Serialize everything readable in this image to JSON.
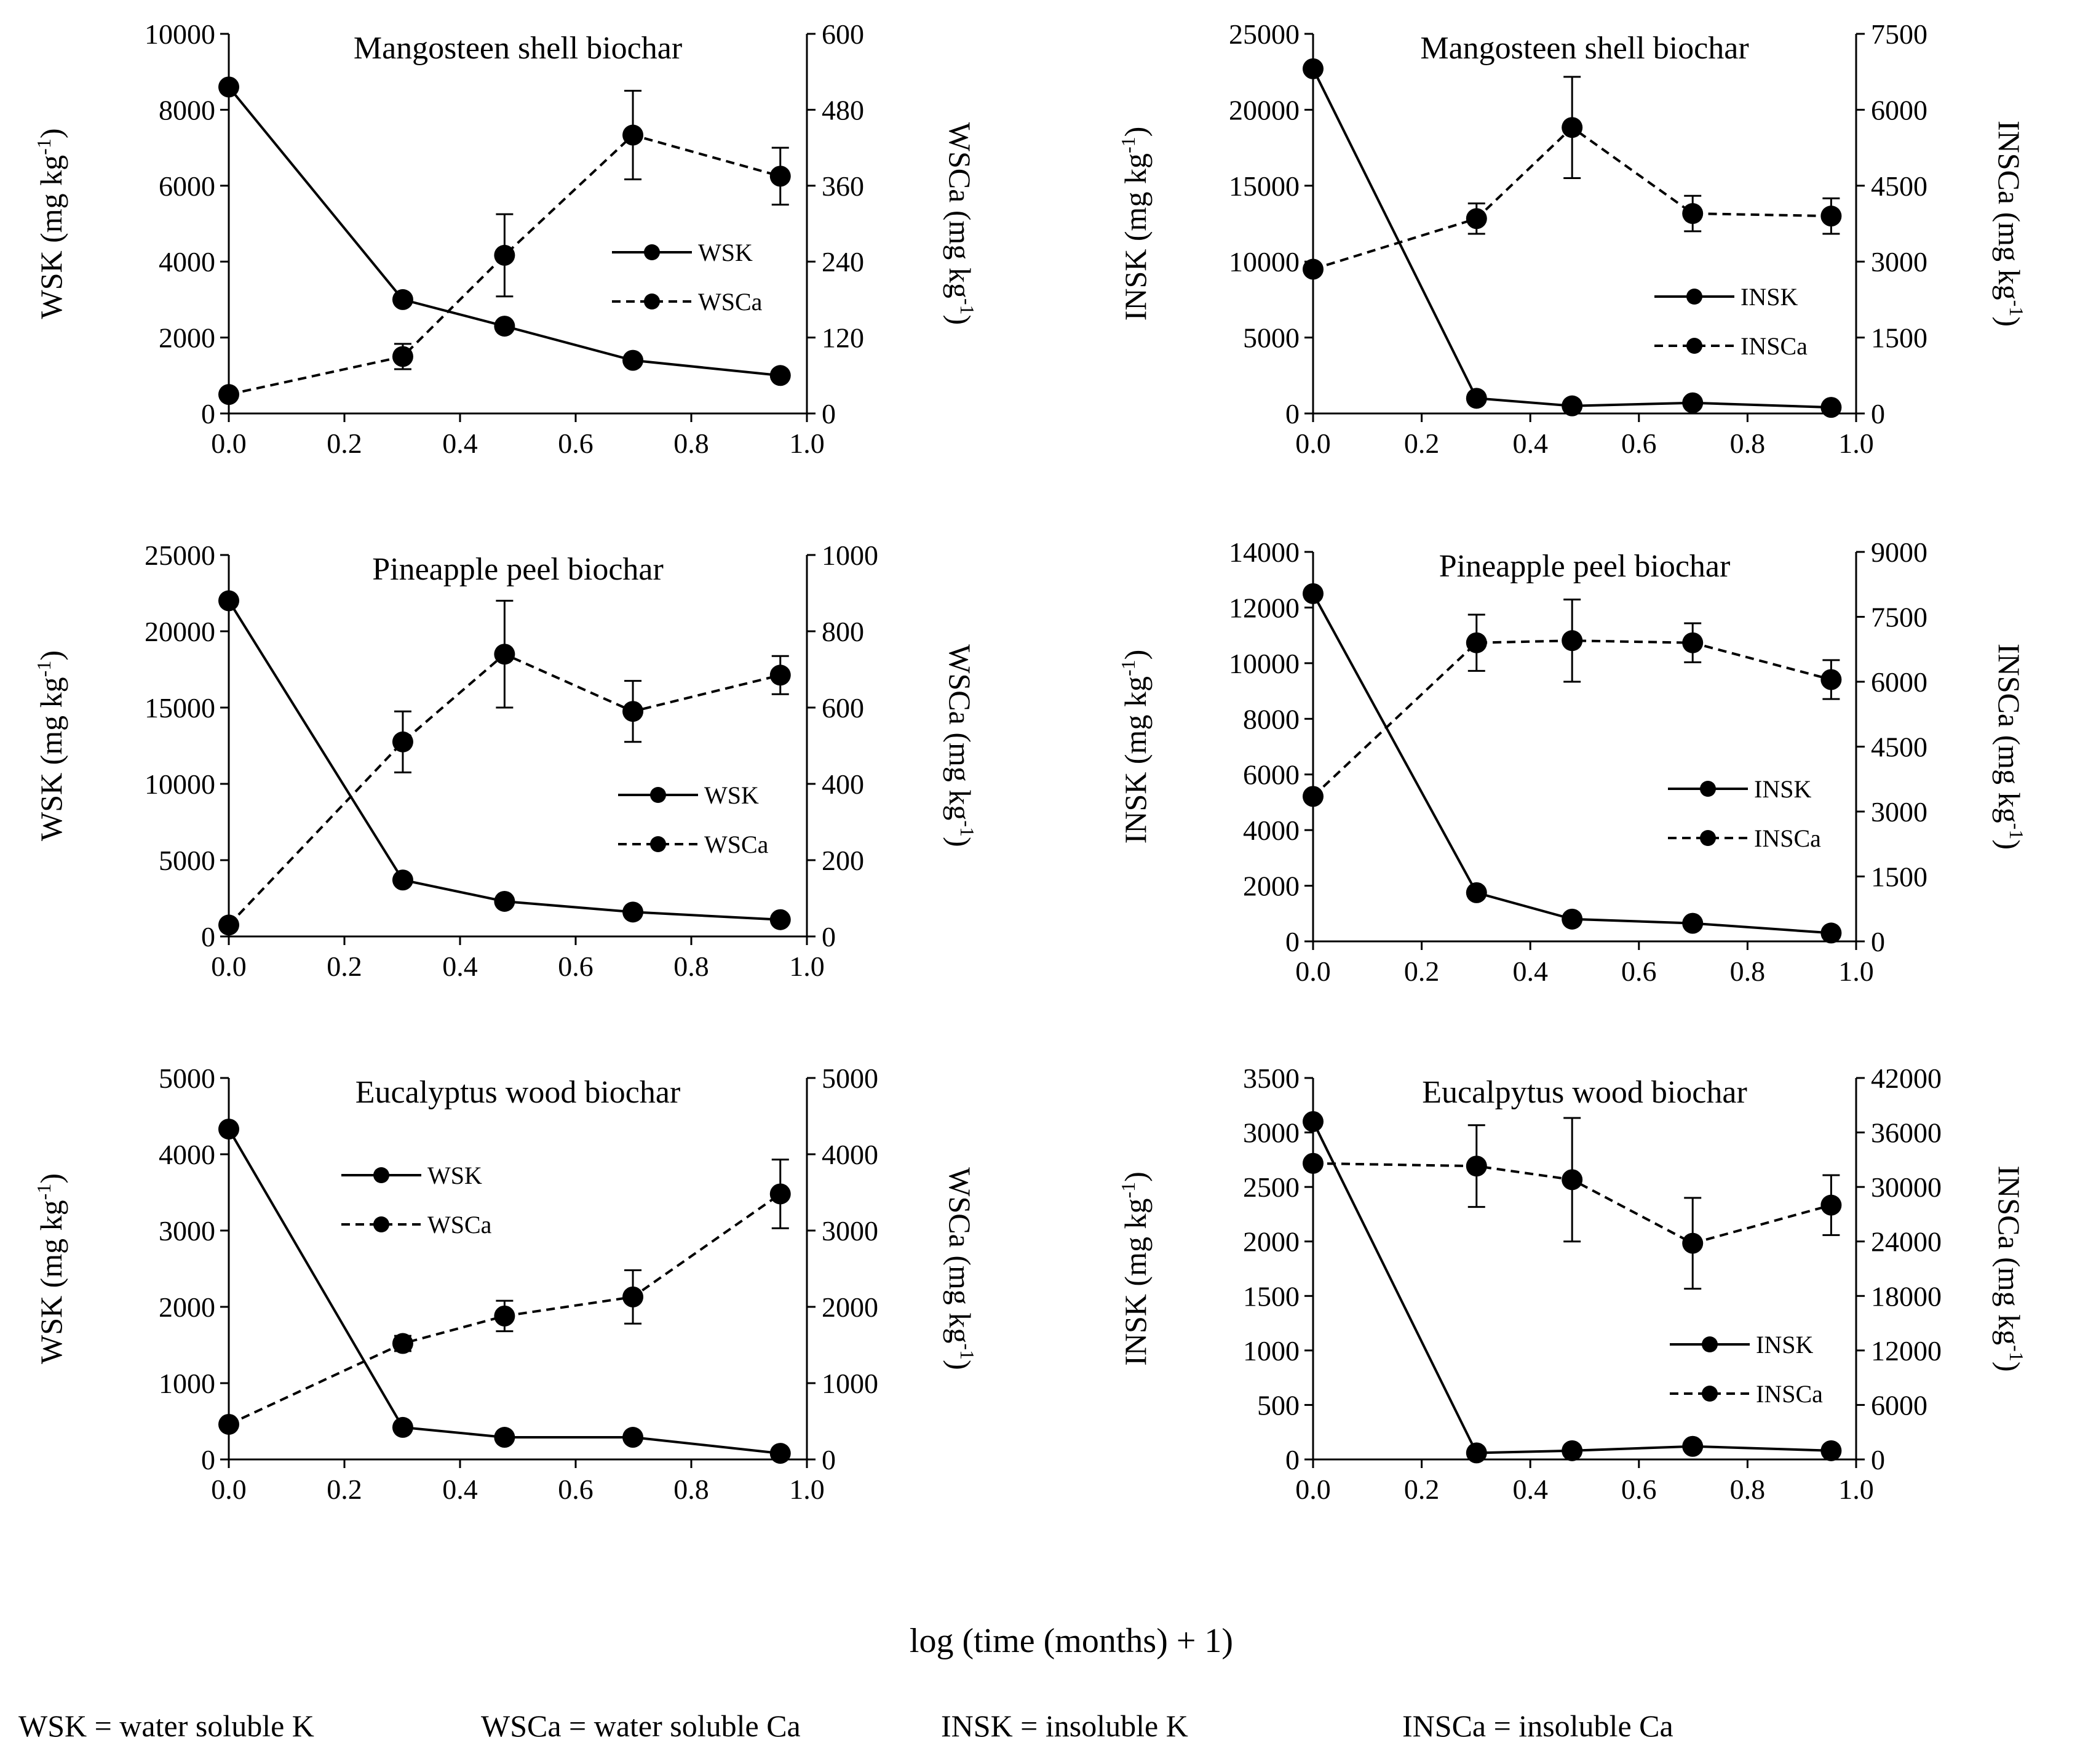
{
  "figure": {
    "common_xlabel": "log (time (months) + 1)",
    "footnotes": [
      "WSK = water soluble K",
      "WSCa = water soluble Ca",
      "INSK = insoluble K",
      "INSCa = insoluble Ca"
    ]
  },
  "chart_data": [
    {
      "type": "line",
      "title": "Mangosteen shell biochar",
      "xlabel": "",
      "xlim": [
        0,
        1
      ],
      "xticks": [
        "0.0",
        "0.2",
        "0.4",
        "0.6",
        "0.8",
        "1.0"
      ],
      "ylabel_left": "WSK (mg kg",
      "ylabel_right": "WSCa (mg kg",
      "ylabel_unit_sup": "-1",
      "ylim_left": [
        0,
        10000
      ],
      "yticks_left": [
        "0",
        "2000",
        "4000",
        "6000",
        "8000",
        "10000"
      ],
      "ylim_right": [
        0,
        600
      ],
      "yticks_right": [
        "0",
        "120",
        "240",
        "360",
        "480",
        "600"
      ],
      "legend_position": "middle-right",
      "series": [
        {
          "name": "WSK",
          "axis": "left",
          "style": "solid",
          "x": [
            0,
            0.301,
            0.477,
            0.699,
            0.954
          ],
          "values": [
            8600,
            3000,
            2300,
            1400,
            1000
          ],
          "errors": [
            0,
            0,
            0,
            0,
            0
          ]
        },
        {
          "name": "WSCa",
          "axis": "right",
          "style": "dashed",
          "x": [
            0,
            0.301,
            0.477,
            0.699,
            0.954
          ],
          "values": [
            30,
            90,
            250,
            440,
            375
          ],
          "errors": [
            0,
            20,
            65,
            70,
            45
          ]
        }
      ]
    },
    {
      "type": "line",
      "title": "Mangosteen shell biochar",
      "xlabel": "",
      "xlim": [
        0,
        1
      ],
      "xticks": [
        "0.0",
        "0.2",
        "0.4",
        "0.6",
        "0.8",
        "1.0"
      ],
      "ylabel_left": "INSK (mg kg",
      "ylabel_right": "INSCa (mg kg",
      "ylabel_unit_sup": "-1",
      "ylim_left": [
        0,
        25000
      ],
      "yticks_left": [
        "0",
        "5000",
        "10000",
        "15000",
        "20000",
        "25000"
      ],
      "ylim_right": [
        0,
        7500
      ],
      "yticks_right": [
        "0",
        "1500",
        "3000",
        "4500",
        "6000",
        "7500"
      ],
      "legend_position": "lower-right",
      "series": [
        {
          "name": "INSK",
          "axis": "left",
          "style": "solid",
          "x": [
            0,
            0.301,
            0.477,
            0.699,
            0.954
          ],
          "values": [
            22700,
            1000,
            500,
            700,
            400
          ],
          "errors": [
            0,
            0,
            0,
            0,
            0
          ]
        },
        {
          "name": "INSCa",
          "axis": "right",
          "style": "dashed",
          "x": [
            0,
            0.301,
            0.477,
            0.699,
            0.954
          ],
          "values": [
            2850,
            3850,
            5650,
            3950,
            3900
          ],
          "errors": [
            0,
            300,
            1000,
            350,
            350
          ]
        }
      ]
    },
    {
      "type": "line",
      "title": "Pineapple peel biochar",
      "xlabel": "",
      "xlim": [
        0,
        1
      ],
      "xticks": [
        "0.0",
        "0.2",
        "0.4",
        "0.6",
        "0.8",
        "1.0"
      ],
      "ylabel_left": "WSK (mg kg",
      "ylabel_right": "WSCa (mg kg",
      "ylabel_unit_sup": "-1",
      "ylim_left": [
        0,
        25000
      ],
      "yticks_left": [
        "0",
        "5000",
        "10000",
        "15000",
        "20000",
        "25000"
      ],
      "ylim_right": [
        0,
        1000
      ],
      "yticks_right": [
        "0",
        "200",
        "400",
        "600",
        "800",
        "1000"
      ],
      "legend_position": "middle-right",
      "series": [
        {
          "name": "WSK",
          "axis": "left",
          "style": "solid",
          "x": [
            0,
            0.301,
            0.477,
            0.699,
            0.954
          ],
          "values": [
            22000,
            3700,
            2300,
            1600,
            1100
          ],
          "errors": [
            0,
            0,
            0,
            0,
            0
          ]
        },
        {
          "name": "WSCa",
          "axis": "right",
          "style": "dashed",
          "x": [
            0,
            0.301,
            0.477,
            0.699,
            0.954
          ],
          "values": [
            30,
            510,
            740,
            590,
            685
          ],
          "errors": [
            0,
            80,
            140,
            80,
            50
          ]
        }
      ]
    },
    {
      "type": "line",
      "title": "Pineapple peel biochar",
      "xlabel": "",
      "xlim": [
        0,
        1
      ],
      "xticks": [
        "0.0",
        "0.2",
        "0.4",
        "0.6",
        "0.8",
        "1.0"
      ],
      "ylabel_left": "INSK (mg kg",
      "ylabel_right": "INSCa (mg kg",
      "ylabel_unit_sup": "-1",
      "ylim_left": [
        0,
        14000
      ],
      "yticks_left": [
        "0",
        "2000",
        "4000",
        "6000",
        "8000",
        "10000",
        "12000",
        "14000"
      ],
      "ylim_right": [
        0,
        9000
      ],
      "yticks_right": [
        "0",
        "1500",
        "3000",
        "4500",
        "6000",
        "7500",
        "9000"
      ],
      "legend_position": "middle-right",
      "series": [
        {
          "name": "INSK",
          "axis": "left",
          "style": "solid",
          "x": [
            0,
            0.301,
            0.477,
            0.699,
            0.954
          ],
          "values": [
            12500,
            1750,
            800,
            650,
            300
          ],
          "errors": [
            0,
            0,
            0,
            0,
            0
          ]
        },
        {
          "name": "INSCa",
          "axis": "right",
          "style": "dashed",
          "x": [
            0,
            0.301,
            0.477,
            0.699,
            0.954
          ],
          "values": [
            3350,
            6900,
            6950,
            6900,
            6050
          ],
          "errors": [
            0,
            650,
            950,
            450,
            450
          ]
        }
      ]
    },
    {
      "type": "line",
      "title": "Eucalyptus wood biochar",
      "xlabel": "",
      "xlim": [
        0,
        1
      ],
      "xticks": [
        "0.0",
        "0.2",
        "0.4",
        "0.6",
        "0.8",
        "1.0"
      ],
      "ylabel_left": "WSK (mg kg",
      "ylabel_right": "WSCa (mg kg",
      "ylabel_unit_sup": "-1",
      "ylim_left": [
        0,
        5000
      ],
      "yticks_left": [
        "0",
        "1000",
        "2000",
        "3000",
        "4000",
        "5000"
      ],
      "ylim_right": [
        0,
        5000
      ],
      "yticks_right": [
        "0",
        "1000",
        "2000",
        "3000",
        "4000",
        "5000"
      ],
      "legend_position": "upper-middle",
      "series": [
        {
          "name": "WSK",
          "axis": "left",
          "style": "solid",
          "x": [
            0,
            0.301,
            0.477,
            0.699,
            0.954
          ],
          "values": [
            4330,
            420,
            290,
            290,
            80
          ],
          "errors": [
            0,
            0,
            0,
            0,
            0
          ]
        },
        {
          "name": "WSCa",
          "axis": "right",
          "style": "dashed",
          "x": [
            0,
            0.301,
            0.477,
            0.699,
            0.954
          ],
          "values": [
            460,
            1520,
            1880,
            2130,
            3480
          ],
          "errors": [
            0,
            100,
            200,
            350,
            450
          ]
        }
      ]
    },
    {
      "type": "line",
      "title": "Eucalpytus wood biochar",
      "xlabel": "",
      "xlim": [
        0,
        1
      ],
      "xticks": [
        "0.0",
        "0.2",
        "0.4",
        "0.6",
        "0.8",
        "1.0"
      ],
      "ylabel_left": "INSK (mg kg",
      "ylabel_right": "INSCa (mg kg",
      "ylabel_unit_sup": "-1",
      "ylim_left": [
        0,
        3500
      ],
      "yticks_left": [
        "0",
        "500",
        "1000",
        "1500",
        "2000",
        "2500",
        "3000",
        "3500"
      ],
      "ylim_right": [
        0,
        42000
      ],
      "yticks_right": [
        "0",
        "6000",
        "12000",
        "18000",
        "24000",
        "30000",
        "36000",
        "42000"
      ],
      "legend_position": "lower-right",
      "series": [
        {
          "name": "INSK",
          "axis": "left",
          "style": "solid",
          "x": [
            0,
            0.301,
            0.477,
            0.699,
            0.954
          ],
          "values": [
            3100,
            60,
            80,
            120,
            80
          ],
          "errors": [
            0,
            0,
            0,
            0,
            0
          ]
        },
        {
          "name": "INSCa",
          "axis": "right",
          "style": "dashed",
          "x": [
            0,
            0.301,
            0.477,
            0.699,
            0.954
          ],
          "values": [
            32600,
            32300,
            30800,
            23800,
            28000
          ],
          "errors": [
            0,
            4500,
            6800,
            5000,
            3300
          ]
        }
      ]
    }
  ]
}
